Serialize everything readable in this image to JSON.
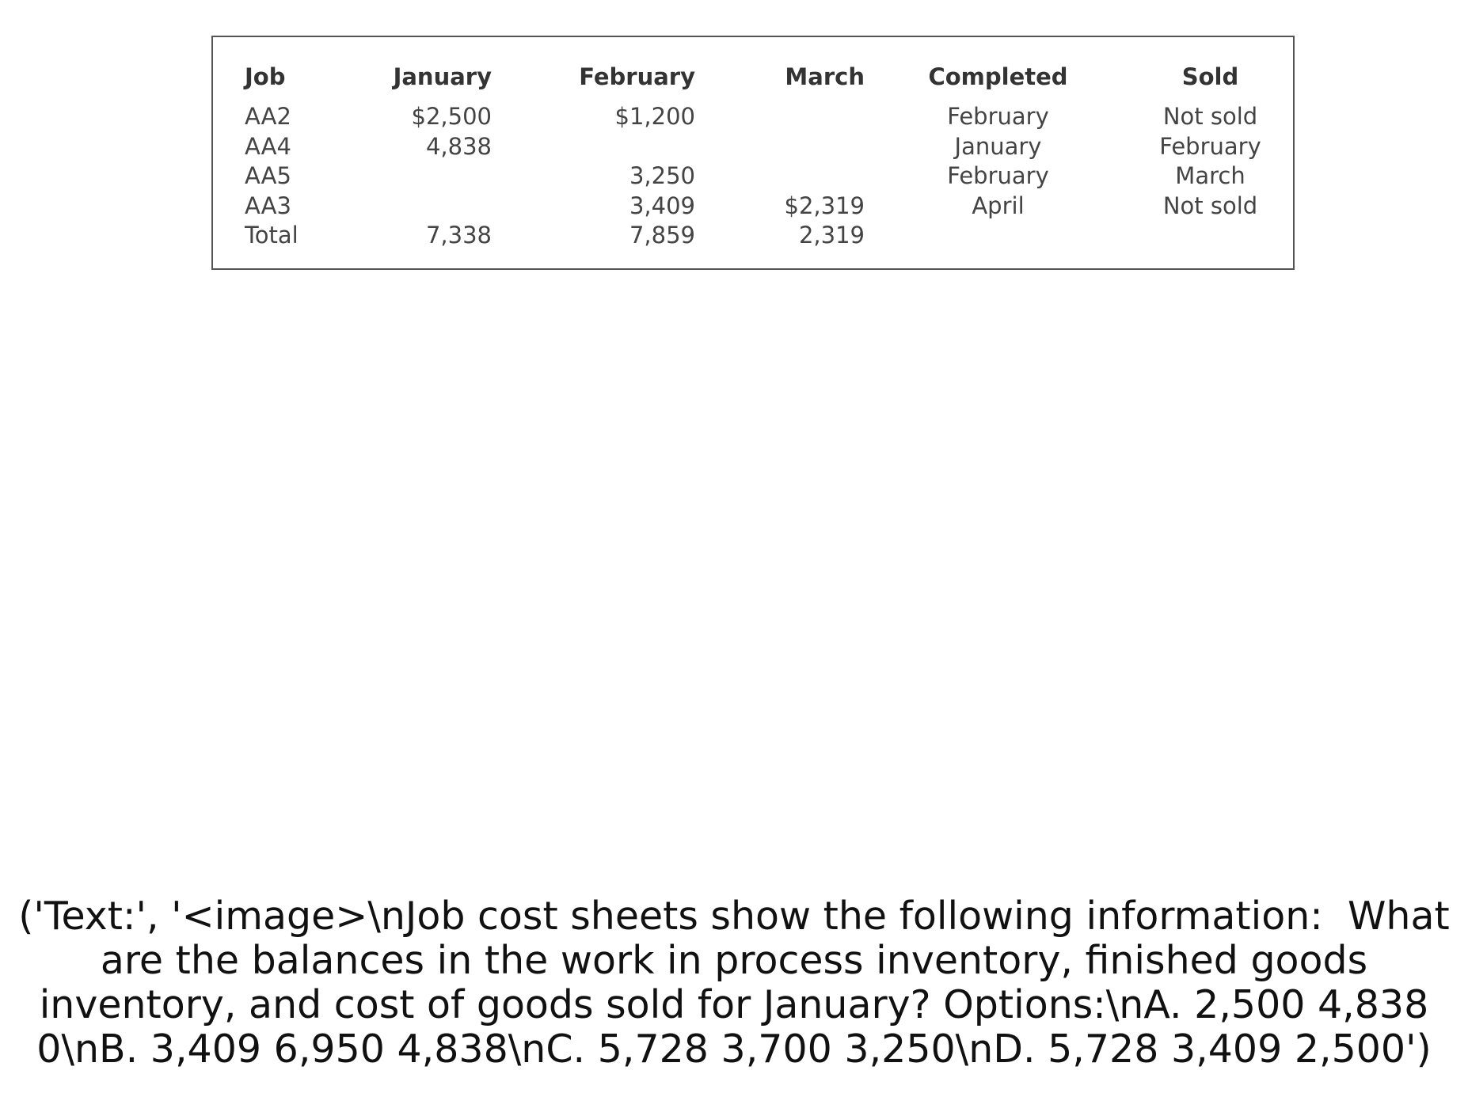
{
  "table": {
    "headers": [
      "Job",
      "January",
      "February",
      "March",
      "Completed",
      "Sold"
    ],
    "rows": [
      [
        "AA2",
        "$2,500",
        "$1,200",
        "",
        "February",
        "Not sold"
      ],
      [
        "AA4",
        "4,838",
        "",
        "",
        "January",
        "February"
      ],
      [
        "AA5",
        "",
        "3,250",
        "",
        "February",
        "March"
      ],
      [
        "AA3",
        "",
        "3,409",
        "$2,319",
        "April",
        "Not sold"
      ],
      [
        "Total",
        "7,338",
        "7,859",
        "2,319",
        "",
        ""
      ]
    ]
  },
  "question": {
    "lines": [
      "('Text:', '<image>\\nJob cost sheets show the following information:  What",
      "are the balances in the work in process inventory, finished goods",
      "inventory, and cost of goods sold for January? Options:\\nA. 2,500 4,838",
      "0\\nB. 3,409 6,950 4,838\\nC. 5,728 3,700 3,250\\nD. 5,728 3,409 2,500')"
    ]
  }
}
